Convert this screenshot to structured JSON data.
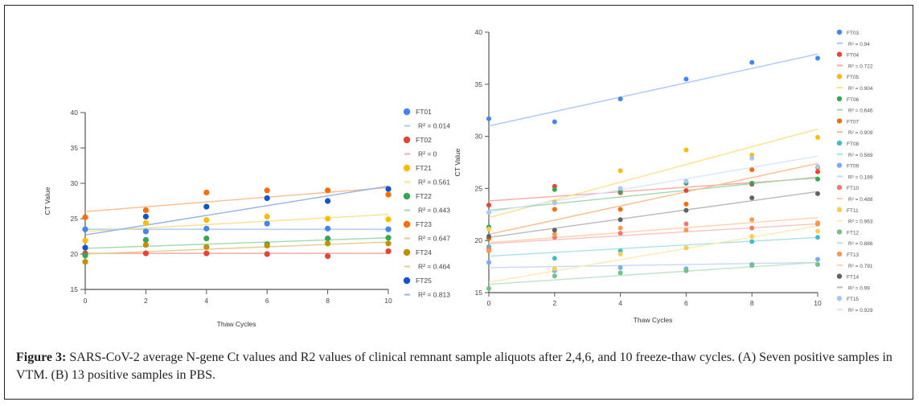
{
  "caption": {
    "label": "Figure 3:",
    "text": " SARS-CoV-2 average N-gene Ct values and R2 values of clinical remnant sample aliquots after 2,4,6, and 10 freeze-thaw cycles. (A) Seven positive samples in VTM. (B) 13 positive samples in PBS."
  },
  "chart_data": [
    {
      "id": "A",
      "type": "scatter",
      "title": "",
      "xlabel": "Thaw Cycles",
      "ylabel": "CT Value",
      "xlim": [
        0,
        10
      ],
      "ylim": [
        15,
        40
      ],
      "xticks": [
        0,
        2,
        4,
        6,
        8,
        10
      ],
      "yticks": [
        15,
        20,
        25,
        30,
        35,
        40
      ],
      "grid": false,
      "legend": "right",
      "x": [
        0,
        2,
        4,
        6,
        8,
        10
      ],
      "series": [
        {
          "name": "FT01",
          "color": "#4285F4",
          "r2": "R² = 0.014",
          "values": [
            23.5,
            23.2,
            23.6,
            24.3,
            23.6,
            23.5
          ],
          "trend": [
            23.5,
            23.5
          ]
        },
        {
          "name": "FT02",
          "color": "#EA4335",
          "r2": "R² = 0",
          "values": [
            20.1,
            20.1,
            20.1,
            20.0,
            19.7,
            20.4
          ],
          "trend": [
            20.1,
            20.1
          ]
        },
        {
          "name": "FT21",
          "color": "#FBBC04",
          "r2": "R² = 0.561",
          "values": [
            21.9,
            24.4,
            24.8,
            25.3,
            25.0,
            24.9
          ],
          "trend": [
            23.2,
            25.6
          ]
        },
        {
          "name": "FT22",
          "color": "#34A853",
          "r2": "R² = 0.443",
          "values": [
            19.8,
            22.0,
            22.2,
            21.4,
            22.2,
            22.3
          ],
          "trend": [
            20.8,
            22.3
          ]
        },
        {
          "name": "FT23",
          "color": "#FF6D01",
          "r2": "R² = 0.647",
          "values": [
            25.2,
            26.2,
            28.7,
            29.0,
            29.0,
            28.4
          ],
          "trend": [
            26.0,
            29.4
          ]
        },
        {
          "name": "FT24",
          "color": "#BF9000",
          "r2": "R² = 0.464",
          "values": [
            18.9,
            21.3,
            21.0,
            21.2,
            21.5,
            21.5
          ],
          "trend": [
            20.0,
            21.7
          ]
        },
        {
          "name": "FT25",
          "color": "#1155CC",
          "r2": "R² = 0.813",
          "values": [
            20.9,
            25.3,
            26.7,
            27.9,
            27.5,
            29.2
          ],
          "trend": [
            22.7,
            29.6
          ]
        }
      ]
    },
    {
      "id": "B",
      "type": "scatter",
      "title": "",
      "xlabel": "Thaw Cycles",
      "ylabel": "CT Value",
      "xlim": [
        0,
        10
      ],
      "ylim": [
        15,
        40
      ],
      "xticks": [
        0,
        2,
        4,
        6,
        8,
        10
      ],
      "yticks": [
        15,
        20,
        25,
        30,
        35,
        40
      ],
      "grid": false,
      "legend": "right",
      "x": [
        0,
        2,
        4,
        6,
        8,
        10
      ],
      "series": [
        {
          "name": "FT03",
          "color": "#4285F4",
          "r2": "R² = 0.94",
          "values": [
            31.7,
            31.4,
            33.6,
            35.5,
            37.1,
            37.5
          ],
          "trend": [
            31.0,
            37.9
          ]
        },
        {
          "name": "FT04",
          "color": "#EA4335",
          "r2": "R² = 0.722",
          "values": [
            23.4,
            25.2,
            24.6,
            24.8,
            25.4,
            26.6
          ],
          "trend": [
            23.8,
            26.0
          ]
        },
        {
          "name": "FT05",
          "color": "#FBBC04",
          "r2": "R² = 0.904",
          "values": [
            21.2,
            23.7,
            26.7,
            28.7,
            28.2,
            29.9
          ],
          "trend": [
            22.2,
            30.7
          ]
        },
        {
          "name": "FT06",
          "color": "#34A853",
          "r2": "R² = 0.646",
          "values": [
            21.3,
            24.9,
            24.7,
            25.5,
            25.5,
            25.9
          ],
          "trend": [
            22.9,
            26.1
          ]
        },
        {
          "name": "FT07",
          "color": "#FF6D01",
          "r2": "R² = 0.909",
          "values": [
            20.2,
            23.0,
            23.0,
            23.5,
            26.8,
            27.0
          ],
          "trend": [
            20.6,
            27.4
          ]
        },
        {
          "name": "FT08",
          "color": "#46BDC6",
          "r2": "R² = 0.569",
          "values": [
            19.4,
            18.3,
            19.0,
            19.3,
            19.9,
            20.3
          ],
          "trend": [
            18.5,
            20.3
          ]
        },
        {
          "name": "FT09",
          "color": "#7BAAF7",
          "r2": "R² = 0.189",
          "values": [
            17.9,
            17.1,
            17.4,
            17.3,
            17.7,
            18.2
          ],
          "trend": [
            17.4,
            17.9
          ]
        },
        {
          "name": "FT10",
          "color": "#F07B72",
          "r2": "R² = 0.488",
          "values": [
            19.2,
            20.3,
            20.7,
            21.6,
            21.2,
            21.6
          ],
          "trend": [
            19.7,
            21.6
          ]
        },
        {
          "name": "FT11",
          "color": "#FCD04F",
          "r2": "R² = 0.963",
          "values": [
            21.1,
            17.3,
            18.7,
            19.3,
            20.4,
            20.9
          ],
          "trend": [
            16.0,
            21.4
          ]
        },
        {
          "name": "FT12",
          "color": "#71C287",
          "r2": "R² = 0.886",
          "values": [
            15.4,
            16.6,
            16.9,
            17.1,
            17.6,
            17.7
          ],
          "trend": [
            15.8,
            17.9
          ]
        },
        {
          "name": "FT13",
          "color": "#FF994D",
          "r2": "R² = 0.791",
          "values": [
            19.0,
            20.6,
            21.2,
            21.0,
            22.0,
            21.7
          ],
          "trend": [
            19.8,
            22.2
          ]
        },
        {
          "name": "FT14",
          "color": "#5F6368",
          "r2": "R² = 0.99",
          "values": [
            20.4,
            21.0,
            22.0,
            22.9,
            24.1,
            24.5
          ],
          "trend": [
            20.3,
            24.7
          ]
        },
        {
          "name": "FT15",
          "color": "#A8C7FA",
          "r2": "R² = 0.929",
          "values": [
            22.7,
            23.6,
            25.0,
            25.7,
            27.9,
            27.1
          ],
          "trend": [
            22.7,
            28.1
          ]
        }
      ]
    }
  ]
}
